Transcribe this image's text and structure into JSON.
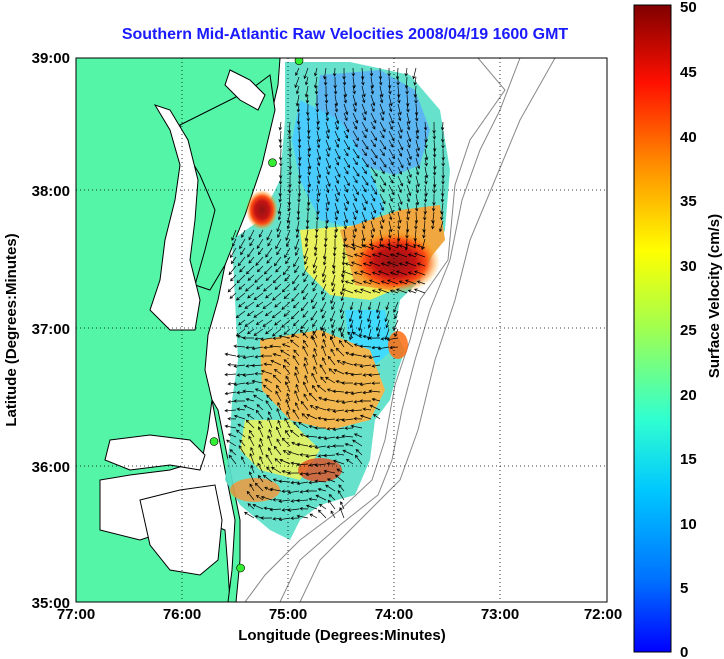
{
  "title": "Southern Mid-Atlantic Raw Velocities 2008/04/19 1600 GMT",
  "axes": {
    "xlabel": "Longitude (Degrees:Minutes)",
    "ylabel": "Latitude (Degrees:Minutes)",
    "x_ticks": [
      "77:00",
      "76:00",
      "75:00",
      "74:00",
      "73:00",
      "72:00"
    ],
    "y_ticks": [
      "39:00",
      "38:00",
      "37:00",
      "36:00",
      "35:00"
    ],
    "xlim": [
      -77,
      -72
    ],
    "ylim": [
      35,
      39
    ],
    "grid": "dotted"
  },
  "colorbar": {
    "label": "Surface Velocity (cm/s)",
    "ticks": [
      "50",
      "45",
      "40",
      "35",
      "30",
      "25",
      "20",
      "15",
      "10",
      "5",
      "0"
    ],
    "range": [
      0,
      50
    ],
    "colormap": "jet"
  },
  "colors": {
    "land": "#55f5a8",
    "water": "#ffffff",
    "title": "#1a1aff",
    "station": "#33ee33",
    "coastline": "#000000",
    "bathymetry": "#888888"
  },
  "stations": [
    {
      "lon": -74.9,
      "lat": 38.98
    },
    {
      "lon": -75.15,
      "lat": 38.23
    },
    {
      "lon": -75.7,
      "lat": 36.18
    },
    {
      "lon": -75.45,
      "lat": 35.25
    }
  ]
}
